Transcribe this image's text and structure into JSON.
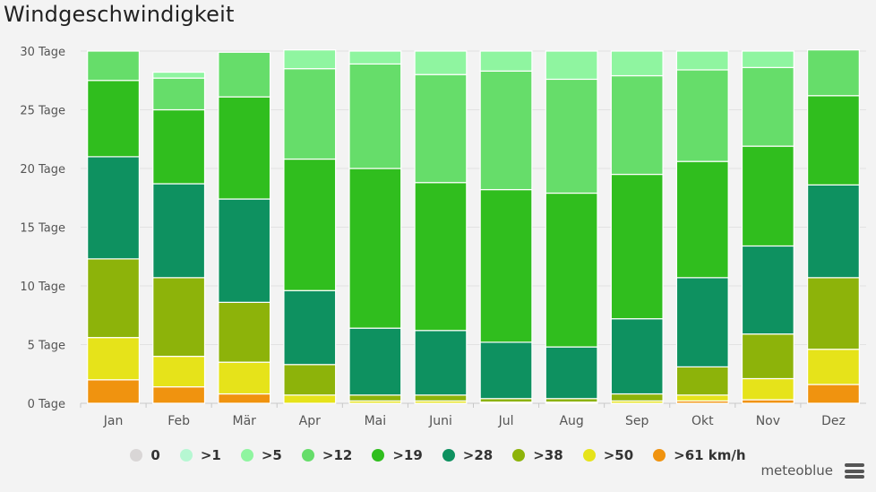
{
  "title": "Windgeschwindigkeit",
  "brand": "meteoblue",
  "chart_data": {
    "type": "bar",
    "stacked": true,
    "title": "Windgeschwindigkeit",
    "ylim": [
      0,
      30
    ],
    "yticks": [
      {
        "value": 0,
        "label": "0 Tage"
      },
      {
        "value": 5,
        "label": "5 Tage"
      },
      {
        "value": 10,
        "label": "10 Tage"
      },
      {
        "value": 15,
        "label": "15 Tage"
      },
      {
        "value": 20,
        "label": "20 Tage"
      },
      {
        "value": 25,
        "label": "25 Tage"
      },
      {
        "value": 30,
        "label": "30 Tage"
      }
    ],
    "grid": true,
    "legend_position": "bottom",
    "categories": [
      "Jan",
      "Feb",
      "Mär",
      "Apr",
      "Mai",
      "Juni",
      "Jul",
      "Aug",
      "Sep",
      "Okt",
      "Nov",
      "Dez"
    ],
    "series": [
      {
        "name": ">61 km/h",
        "color": "#f0930f",
        "values": [
          2.0,
          1.4,
          0.8,
          0.0,
          0.0,
          0.0,
          0.0,
          0.0,
          0.0,
          0.2,
          0.3,
          1.6
        ]
      },
      {
        "name": ">50",
        "color": "#e6e31a",
        "values": [
          3.6,
          2.6,
          2.7,
          0.7,
          0.2,
          0.2,
          0.1,
          0.1,
          0.2,
          0.5,
          1.8,
          3.0
        ]
      },
      {
        "name": ">38",
        "color": "#8db30a",
        "values": [
          6.7,
          6.7,
          5.1,
          2.6,
          0.5,
          0.5,
          0.3,
          0.3,
          0.6,
          2.4,
          3.8,
          6.1
        ]
      },
      {
        "name": ">28",
        "color": "#0e9160",
        "values": [
          8.7,
          8.0,
          8.8,
          6.3,
          5.7,
          5.5,
          4.8,
          4.4,
          6.4,
          7.6,
          7.5,
          7.9
        ]
      },
      {
        "name": ">19",
        "color": "#30be1e",
        "values": [
          6.5,
          6.3,
          8.7,
          11.2,
          13.6,
          12.6,
          13.0,
          13.1,
          12.3,
          9.9,
          8.5,
          7.6
        ]
      },
      {
        "name": ">12",
        "color": "#66dd6a",
        "values": [
          2.5,
          2.7,
          3.8,
          7.7,
          8.9,
          9.2,
          10.1,
          9.7,
          8.4,
          7.8,
          6.7,
          3.9
        ]
      },
      {
        "name": ">5",
        "color": "#8ff5a0",
        "values": [
          0.0,
          0.5,
          0.0,
          1.6,
          1.1,
          2.0,
          1.7,
          2.4,
          2.1,
          1.6,
          1.4,
          0.0
        ]
      },
      {
        "name": ">1",
        "color": "#b6f7d2",
        "values": [
          0.0,
          0.0,
          0.0,
          0.0,
          0.0,
          0.0,
          0.0,
          0.0,
          0.0,
          0.0,
          0.0,
          0.0
        ]
      },
      {
        "name": "0",
        "color": "#d9d6d6",
        "values": [
          0.0,
          0.0,
          0.0,
          0.0,
          0.0,
          0.0,
          0.0,
          0.0,
          0.0,
          0.0,
          0.0,
          0.0
        ]
      }
    ],
    "legend_order": [
      "0",
      ">1",
      ">5",
      ">12",
      ">19",
      ">28",
      ">38",
      ">50",
      ">61 km/h"
    ]
  }
}
